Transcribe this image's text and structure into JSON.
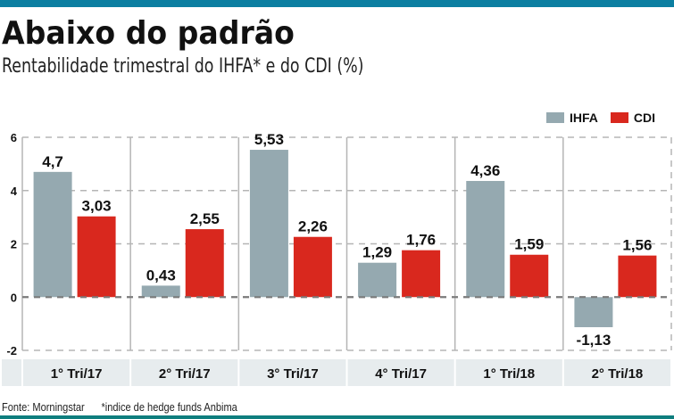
{
  "header": {
    "title": "Abaixo do padrão",
    "subtitle": "Rentabilidade trimestral do IHFA* e do CDI (%)"
  },
  "footer": {
    "source": "Fonte: Morningstar",
    "note": "*indice de hedge funds Anbima"
  },
  "colors": {
    "top_strip": "#0c7fa1",
    "bottom_strip": "#0e7e7e",
    "ihfa": "#95a9b0",
    "cdi": "#d9281e",
    "category_band": "#e7ecee"
  },
  "chart_data": {
    "type": "bar",
    "title": "Abaixo do padrão",
    "subtitle": "Rentabilidade trimestral do IHFA* e do CDI (%)",
    "xlabel": "",
    "ylabel": "",
    "ylim": [
      -2,
      6
    ],
    "yticks": [
      6,
      4,
      2,
      0,
      -2
    ],
    "ytick_labels": [
      "6",
      "4",
      "2",
      "0",
      "-2"
    ],
    "grid": true,
    "legend_position": "top-right",
    "categories": [
      "1° Tri/17",
      "2° Tri/17",
      "3° Tri/17",
      "4° Tri/17",
      "1° Tri/18",
      "2° Tri/18"
    ],
    "series": [
      {
        "name": "IHFA",
        "color": "#95a9b0",
        "values": [
          4.7,
          0.43,
          5.53,
          1.29,
          4.36,
          -1.13
        ],
        "labels": [
          "4,7",
          "0,43",
          "5,53",
          "1,29",
          "4,36",
          "-1,13"
        ]
      },
      {
        "name": "CDI",
        "color": "#d9281e",
        "values": [
          3.03,
          2.55,
          2.26,
          1.76,
          1.59,
          1.56
        ],
        "labels": [
          "3,03",
          "2,55",
          "2,26",
          "1,76",
          "1,59",
          "1,56"
        ]
      }
    ]
  }
}
